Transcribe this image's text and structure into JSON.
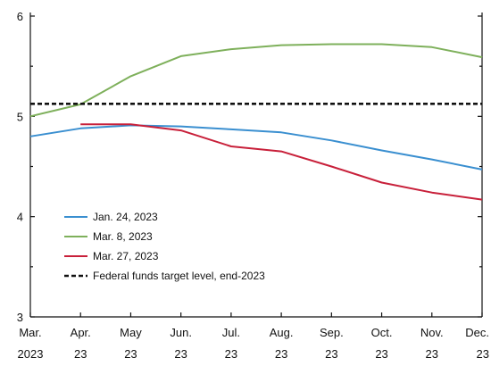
{
  "chart_data": {
    "type": "line",
    "x_labels": [
      [
        "Mar.",
        "2023"
      ],
      [
        "Apr.",
        "23"
      ],
      [
        "May",
        "23"
      ],
      [
        "Jun.",
        "23"
      ],
      [
        "Jul.",
        "23"
      ],
      [
        "Aug.",
        "23"
      ],
      [
        "Sep.",
        "23"
      ],
      [
        "Oct.",
        "23"
      ],
      [
        "Nov.",
        "23"
      ],
      [
        "Dec.",
        "23"
      ]
    ],
    "x": [
      0,
      1,
      2,
      3,
      4,
      5,
      6,
      7,
      8,
      9
    ],
    "ylim": [
      3,
      6
    ],
    "yticks": [
      3,
      4,
      5,
      6
    ],
    "yminor": [
      3.5,
      4.5,
      5.5
    ],
    "series": [
      {
        "name": "Jan. 24, 2023",
        "color": "#3a8fd0",
        "x": [
          0,
          1,
          2,
          3,
          4,
          5,
          6,
          7,
          8,
          9
        ],
        "values": [
          4.8,
          4.88,
          4.91,
          4.9,
          4.87,
          4.84,
          4.76,
          4.66,
          4.57,
          4.47
        ]
      },
      {
        "name": "Mar. 8, 2023",
        "color": "#7eb05b",
        "x": [
          0,
          1,
          2,
          3,
          4,
          5,
          6,
          7,
          8,
          9
        ],
        "values": [
          5.0,
          5.12,
          5.4,
          5.6,
          5.67,
          5.71,
          5.72,
          5.72,
          5.69,
          5.59
        ]
      },
      {
        "name": "Mar. 27, 2023",
        "color": "#c8203a",
        "x": [
          1,
          2,
          3,
          4,
          5,
          6,
          7,
          8,
          9
        ],
        "values": [
          4.92,
          4.92,
          4.86,
          4.7,
          4.65,
          4.5,
          4.34,
          4.24,
          4.17
        ]
      },
      {
        "name": "Federal funds target level, end-2023",
        "color": "#111111",
        "dashed": true,
        "x": [
          0,
          9
        ],
        "values": [
          5.125,
          5.125
        ]
      }
    ],
    "legend": {
      "placement": "bottom-left"
    },
    "grid": false
  }
}
